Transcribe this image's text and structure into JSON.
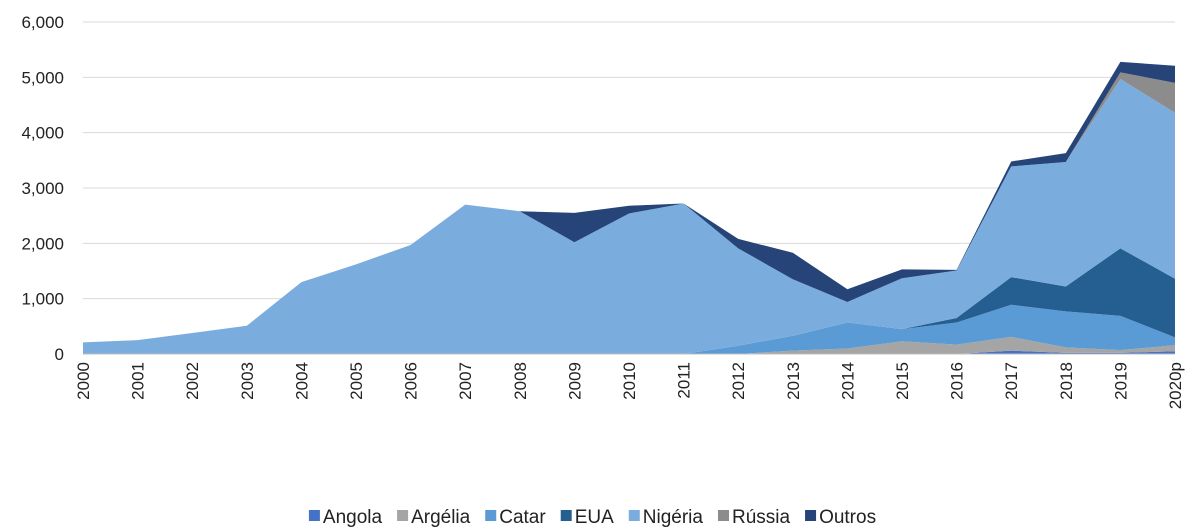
{
  "chart_data": {
    "type": "stacked_area",
    "categories": [
      "2000",
      "2001",
      "2002",
      "2003",
      "2004",
      "2005",
      "2006",
      "2007",
      "2008",
      "2009",
      "2010",
      "2011",
      "2012",
      "2013",
      "2014",
      "2015",
      "2016",
      "2017",
      "2018",
      "2019",
      "2020p"
    ],
    "series": [
      {
        "name": "Angola",
        "color": "#4472c4",
        "values": [
          0,
          0,
          0,
          0,
          0,
          0,
          0,
          0,
          0,
          0,
          0,
          0,
          0,
          0,
          0,
          0,
          0,
          60,
          20,
          20,
          50
        ]
      },
      {
        "name": "Argélia",
        "color": "#a5a5a5",
        "values": [
          0,
          0,
          0,
          0,
          0,
          0,
          0,
          0,
          0,
          0,
          0,
          0,
          0,
          60,
          100,
          230,
          170,
          250,
          100,
          50,
          110
        ]
      },
      {
        "name": "Catar",
        "color": "#5b9bd5",
        "values": [
          0,
          0,
          0,
          0,
          0,
          0,
          0,
          0,
          0,
          0,
          0,
          0,
          150,
          270,
          470,
          220,
          400,
          580,
          650,
          620,
          140
        ]
      },
      {
        "name": "EUA",
        "color": "#255e91",
        "values": [
          0,
          0,
          0,
          0,
          0,
          0,
          0,
          0,
          0,
          0,
          0,
          0,
          0,
          0,
          0,
          0,
          80,
          500,
          450,
          1220,
          1060
        ]
      },
      {
        "name": "Nigéria",
        "color": "#7aaddd",
        "values": [
          210,
          250,
          380,
          510,
          1300,
          1620,
          1970,
          2700,
          2580,
          2020,
          2540,
          2720,
          1760,
          1020,
          370,
          920,
          860,
          2000,
          2250,
          3060,
          3000
        ]
      },
      {
        "name": "Rússia",
        "color": "#8c8c8c",
        "values": [
          0,
          0,
          0,
          0,
          0,
          0,
          0,
          0,
          0,
          0,
          0,
          0,
          0,
          0,
          0,
          0,
          0,
          0,
          0,
          120,
          540
        ]
      },
      {
        "name": "Outros",
        "color": "#264478",
        "values": [
          0,
          0,
          0,
          0,
          0,
          0,
          0,
          0,
          0,
          530,
          140,
          0,
          170,
          480,
          230,
          160,
          10,
          90,
          160,
          190,
          310
        ]
      }
    ],
    "ylim": [
      0,
      6000
    ],
    "yticks": [
      0,
      {
        "value": 1000,
        "label": "1,000"
      },
      {
        "value": 2000,
        "label": "2,000"
      },
      {
        "value": 3000,
        "label": "3,000"
      },
      {
        "value": 4000,
        "label": "4,000"
      },
      {
        "value": 5000,
        "label": "5,000"
      },
      {
        "value": 6000,
        "label": "6,000"
      }
    ],
    "grid": true,
    "legend": "bottom"
  }
}
